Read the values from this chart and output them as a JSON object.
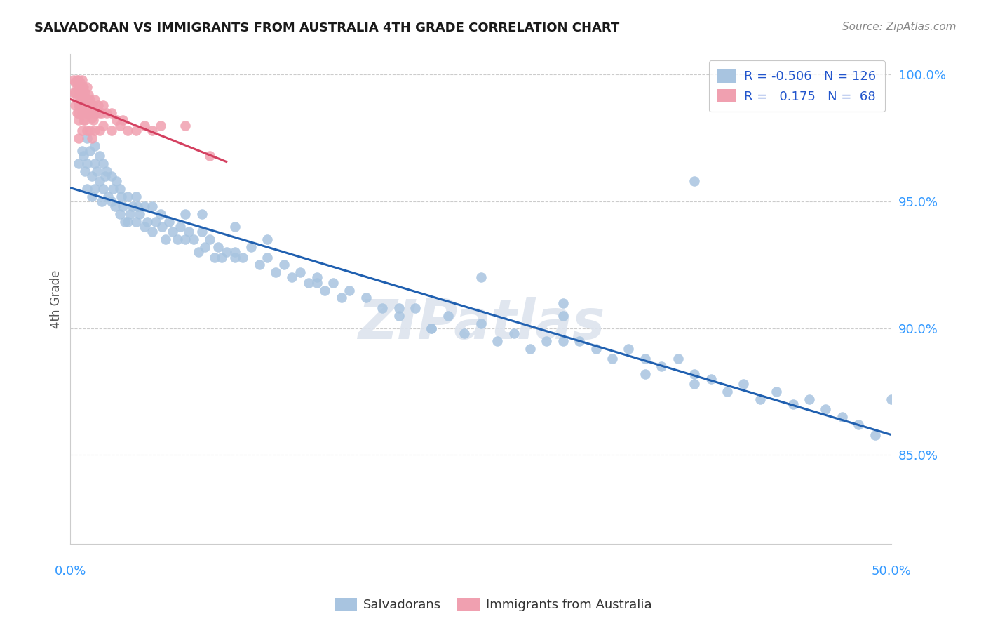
{
  "title": "SALVADORAN VS IMMIGRANTS FROM AUSTRALIA 4TH GRADE CORRELATION CHART",
  "source": "Source: ZipAtlas.com",
  "ylabel": "4th Grade",
  "ytick_labels": [
    "85.0%",
    "90.0%",
    "95.0%",
    "100.0%"
  ],
  "ytick_values": [
    0.85,
    0.9,
    0.95,
    1.0
  ],
  "xlim": [
    0.0,
    0.5
  ],
  "ylim": [
    0.815,
    1.008
  ],
  "legend_blue_r": "-0.506",
  "legend_blue_n": "126",
  "legend_pink_r": "0.175",
  "legend_pink_n": "68",
  "blue_color": "#a8c4e0",
  "pink_color": "#f0a0b0",
  "line_blue": "#2060b0",
  "line_pink": "#d44060",
  "watermark": "ZIPatlas",
  "blue_scatter_x": [
    0.005,
    0.007,
    0.008,
    0.009,
    0.01,
    0.01,
    0.01,
    0.012,
    0.013,
    0.013,
    0.015,
    0.015,
    0.015,
    0.016,
    0.018,
    0.018,
    0.019,
    0.02,
    0.02,
    0.021,
    0.022,
    0.023,
    0.025,
    0.025,
    0.026,
    0.027,
    0.028,
    0.03,
    0.03,
    0.031,
    0.032,
    0.033,
    0.035,
    0.035,
    0.036,
    0.038,
    0.04,
    0.04,
    0.041,
    0.042,
    0.045,
    0.045,
    0.047,
    0.05,
    0.05,
    0.052,
    0.055,
    0.056,
    0.058,
    0.06,
    0.062,
    0.065,
    0.067,
    0.07,
    0.07,
    0.072,
    0.075,
    0.078,
    0.08,
    0.082,
    0.085,
    0.088,
    0.09,
    0.092,
    0.095,
    0.1,
    0.1,
    0.105,
    0.11,
    0.115,
    0.12,
    0.125,
    0.13,
    0.135,
    0.14,
    0.145,
    0.15,
    0.155,
    0.16,
    0.165,
    0.17,
    0.18,
    0.19,
    0.2,
    0.21,
    0.22,
    0.23,
    0.24,
    0.25,
    0.26,
    0.27,
    0.28,
    0.29,
    0.3,
    0.31,
    0.32,
    0.33,
    0.34,
    0.35,
    0.36,
    0.37,
    0.38,
    0.38,
    0.39,
    0.4,
    0.41,
    0.42,
    0.43,
    0.44,
    0.45,
    0.46,
    0.47,
    0.48,
    0.49,
    0.5,
    0.38,
    0.35,
    0.3,
    0.25,
    0.2,
    0.15,
    0.1,
    0.3,
    0.12,
    0.08,
    0.22
  ],
  "blue_scatter_y": [
    0.965,
    0.97,
    0.968,
    0.962,
    0.975,
    0.965,
    0.955,
    0.97,
    0.96,
    0.952,
    0.972,
    0.965,
    0.955,
    0.962,
    0.968,
    0.958,
    0.95,
    0.965,
    0.955,
    0.96,
    0.962,
    0.952,
    0.96,
    0.95,
    0.955,
    0.948,
    0.958,
    0.955,
    0.945,
    0.952,
    0.948,
    0.942,
    0.952,
    0.942,
    0.945,
    0.948,
    0.952,
    0.942,
    0.948,
    0.945,
    0.948,
    0.94,
    0.942,
    0.948,
    0.938,
    0.942,
    0.945,
    0.94,
    0.935,
    0.942,
    0.938,
    0.935,
    0.94,
    0.945,
    0.935,
    0.938,
    0.935,
    0.93,
    0.938,
    0.932,
    0.935,
    0.928,
    0.932,
    0.928,
    0.93,
    0.94,
    0.93,
    0.928,
    0.932,
    0.925,
    0.928,
    0.922,
    0.925,
    0.92,
    0.922,
    0.918,
    0.92,
    0.915,
    0.918,
    0.912,
    0.915,
    0.912,
    0.908,
    0.905,
    0.908,
    0.9,
    0.905,
    0.898,
    0.902,
    0.895,
    0.898,
    0.892,
    0.895,
    0.905,
    0.895,
    0.892,
    0.888,
    0.892,
    0.888,
    0.885,
    0.888,
    0.882,
    0.878,
    0.88,
    0.875,
    0.878,
    0.872,
    0.875,
    0.87,
    0.872,
    0.868,
    0.865,
    0.862,
    0.858,
    0.872,
    0.958,
    0.882,
    0.91,
    0.92,
    0.908,
    0.918,
    0.928,
    0.895,
    0.935,
    0.945,
    0.9
  ],
  "pink_scatter_x": [
    0.002,
    0.002,
    0.003,
    0.003,
    0.003,
    0.004,
    0.004,
    0.004,
    0.004,
    0.005,
    0.005,
    0.005,
    0.005,
    0.005,
    0.005,
    0.005,
    0.006,
    0.006,
    0.006,
    0.007,
    0.007,
    0.007,
    0.007,
    0.007,
    0.008,
    0.008,
    0.008,
    0.008,
    0.009,
    0.009,
    0.009,
    0.01,
    0.01,
    0.01,
    0.01,
    0.011,
    0.011,
    0.012,
    0.012,
    0.012,
    0.013,
    0.013,
    0.013,
    0.014,
    0.014,
    0.015,
    0.015,
    0.015,
    0.016,
    0.017,
    0.018,
    0.018,
    0.019,
    0.02,
    0.02,
    0.022,
    0.025,
    0.025,
    0.028,
    0.03,
    0.032,
    0.035,
    0.04,
    0.045,
    0.05,
    0.055,
    0.07,
    0.085
  ],
  "pink_scatter_y": [
    0.998,
    0.993,
    0.997,
    0.993,
    0.988,
    0.998,
    0.995,
    0.99,
    0.985,
    0.998,
    0.995,
    0.992,
    0.988,
    0.985,
    0.982,
    0.975,
    0.997,
    0.993,
    0.988,
    0.998,
    0.995,
    0.99,
    0.985,
    0.978,
    0.995,
    0.992,
    0.988,
    0.982,
    0.993,
    0.988,
    0.982,
    0.995,
    0.99,
    0.985,
    0.978,
    0.992,
    0.985,
    0.99,
    0.985,
    0.978,
    0.988,
    0.983,
    0.975,
    0.988,
    0.982,
    0.99,
    0.985,
    0.978,
    0.985,
    0.988,
    0.985,
    0.978,
    0.985,
    0.988,
    0.98,
    0.985,
    0.985,
    0.978,
    0.982,
    0.98,
    0.982,
    0.978,
    0.978,
    0.98,
    0.978,
    0.98,
    0.98,
    0.968
  ]
}
